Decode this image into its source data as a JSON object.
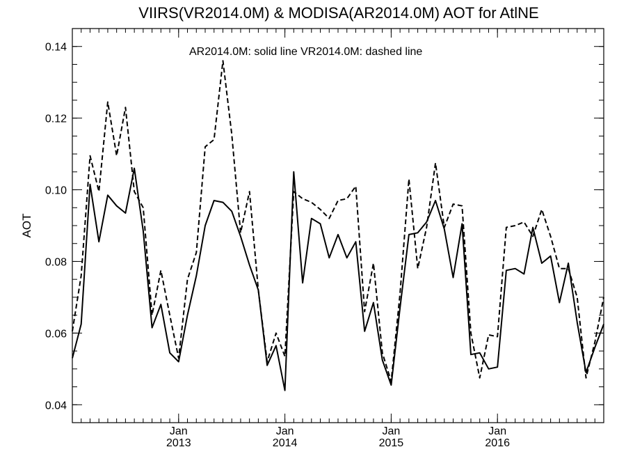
{
  "chart_data": {
    "type": "line",
    "title": "VIIRS(VR2014.0M) & MODISA(AR2014.0M)  AOT for AtlNE",
    "annotation": "AR2014.0M: solid line   VR2014.0M: dashed line",
    "ylabel": "AOT",
    "xlabel": "",
    "ylim": [
      0.035,
      0.145
    ],
    "xlim": [
      0,
      60
    ],
    "x_unit": "months since Jan 2012",
    "yticks": [
      {
        "value": 0.04,
        "label": "0.04"
      },
      {
        "value": 0.06,
        "label": "0.06"
      },
      {
        "value": 0.08,
        "label": "0.08"
      },
      {
        "value": 0.1,
        "label": "0.10"
      },
      {
        "value": 0.12,
        "label": "0.12"
      },
      {
        "value": 0.14,
        "label": "0.14"
      }
    ],
    "xticks": [
      {
        "value": 12,
        "month": "Jan",
        "year": "2013"
      },
      {
        "value": 24,
        "month": "Jan",
        "year": "2014"
      },
      {
        "value": 36,
        "month": "Jan",
        "year": "2015"
      },
      {
        "value": 48,
        "month": "Jan",
        "year": "2016"
      }
    ],
    "series": [
      {
        "name": "AR2014.0M",
        "style": "solid",
        "color": "#000000",
        "x": [
          0,
          1,
          2,
          3,
          4,
          5,
          6,
          7,
          8,
          9,
          10,
          11,
          12,
          13,
          14,
          15,
          16,
          17,
          18,
          19,
          20,
          21,
          22,
          23,
          24,
          25,
          26,
          27,
          28,
          29,
          30,
          31,
          32,
          33,
          34,
          35,
          36,
          37,
          38,
          39,
          40,
          41,
          42,
          43,
          44,
          45,
          46,
          47,
          48,
          49,
          50,
          51,
          52,
          53,
          54,
          55,
          56,
          57,
          58,
          59,
          60
        ],
        "values": [
          0.053,
          0.0625,
          0.1015,
          0.0855,
          0.0985,
          0.0955,
          0.0935,
          0.106,
          0.0885,
          0.0615,
          0.068,
          0.0545,
          0.052,
          0.065,
          0.076,
          0.09,
          0.097,
          0.0965,
          0.094,
          0.087,
          0.079,
          0.072,
          0.051,
          0.0565,
          0.044,
          0.105,
          0.074,
          0.092,
          0.0905,
          0.081,
          0.0875,
          0.081,
          0.0855,
          0.0605,
          0.0685,
          0.0525,
          0.0455,
          0.067,
          0.0875,
          0.088,
          0.091,
          0.097,
          0.089,
          0.0755,
          0.0905,
          0.054,
          0.0545,
          0.05,
          0.0505,
          0.0775,
          0.078,
          0.0765,
          0.0895,
          0.0795,
          0.0815,
          0.0685,
          0.0795,
          0.063,
          0.049,
          0.056,
          0.0625
        ]
      },
      {
        "name": "VR2014.0M",
        "style": "dashed",
        "color": "#000000",
        "x": [
          0,
          1,
          2,
          3,
          4,
          5,
          6,
          7,
          8,
          9,
          10,
          11,
          12,
          13,
          14,
          15,
          16,
          17,
          18,
          19,
          20,
          21,
          22,
          23,
          24,
          25,
          26,
          27,
          28,
          29,
          30,
          31,
          32,
          33,
          34,
          35,
          36,
          37,
          38,
          39,
          40,
          41,
          42,
          43,
          44,
          45,
          46,
          47,
          48,
          49,
          50,
          51,
          52,
          53,
          54,
          55,
          56,
          57,
          58,
          59,
          60
        ],
        "values": [
          0.0605,
          0.076,
          0.1095,
          0.0995,
          0.1245,
          0.1095,
          0.123,
          0.0995,
          0.095,
          0.065,
          0.0775,
          0.065,
          0.053,
          0.075,
          0.0825,
          0.112,
          0.114,
          0.136,
          0.1155,
          0.088,
          0.0995,
          0.072,
          0.052,
          0.06,
          0.0535,
          0.0995,
          0.0975,
          0.0965,
          0.0945,
          0.092,
          0.097,
          0.0975,
          0.101,
          0.066,
          0.0795,
          0.0545,
          0.0465,
          0.071,
          0.103,
          0.078,
          0.0895,
          0.1075,
          0.0895,
          0.096,
          0.0955,
          0.06,
          0.0475,
          0.0595,
          0.059,
          0.0895,
          0.09,
          0.091,
          0.087,
          0.0945,
          0.087,
          0.078,
          0.078,
          0.07,
          0.0475,
          0.0575,
          0.07
        ]
      }
    ]
  }
}
